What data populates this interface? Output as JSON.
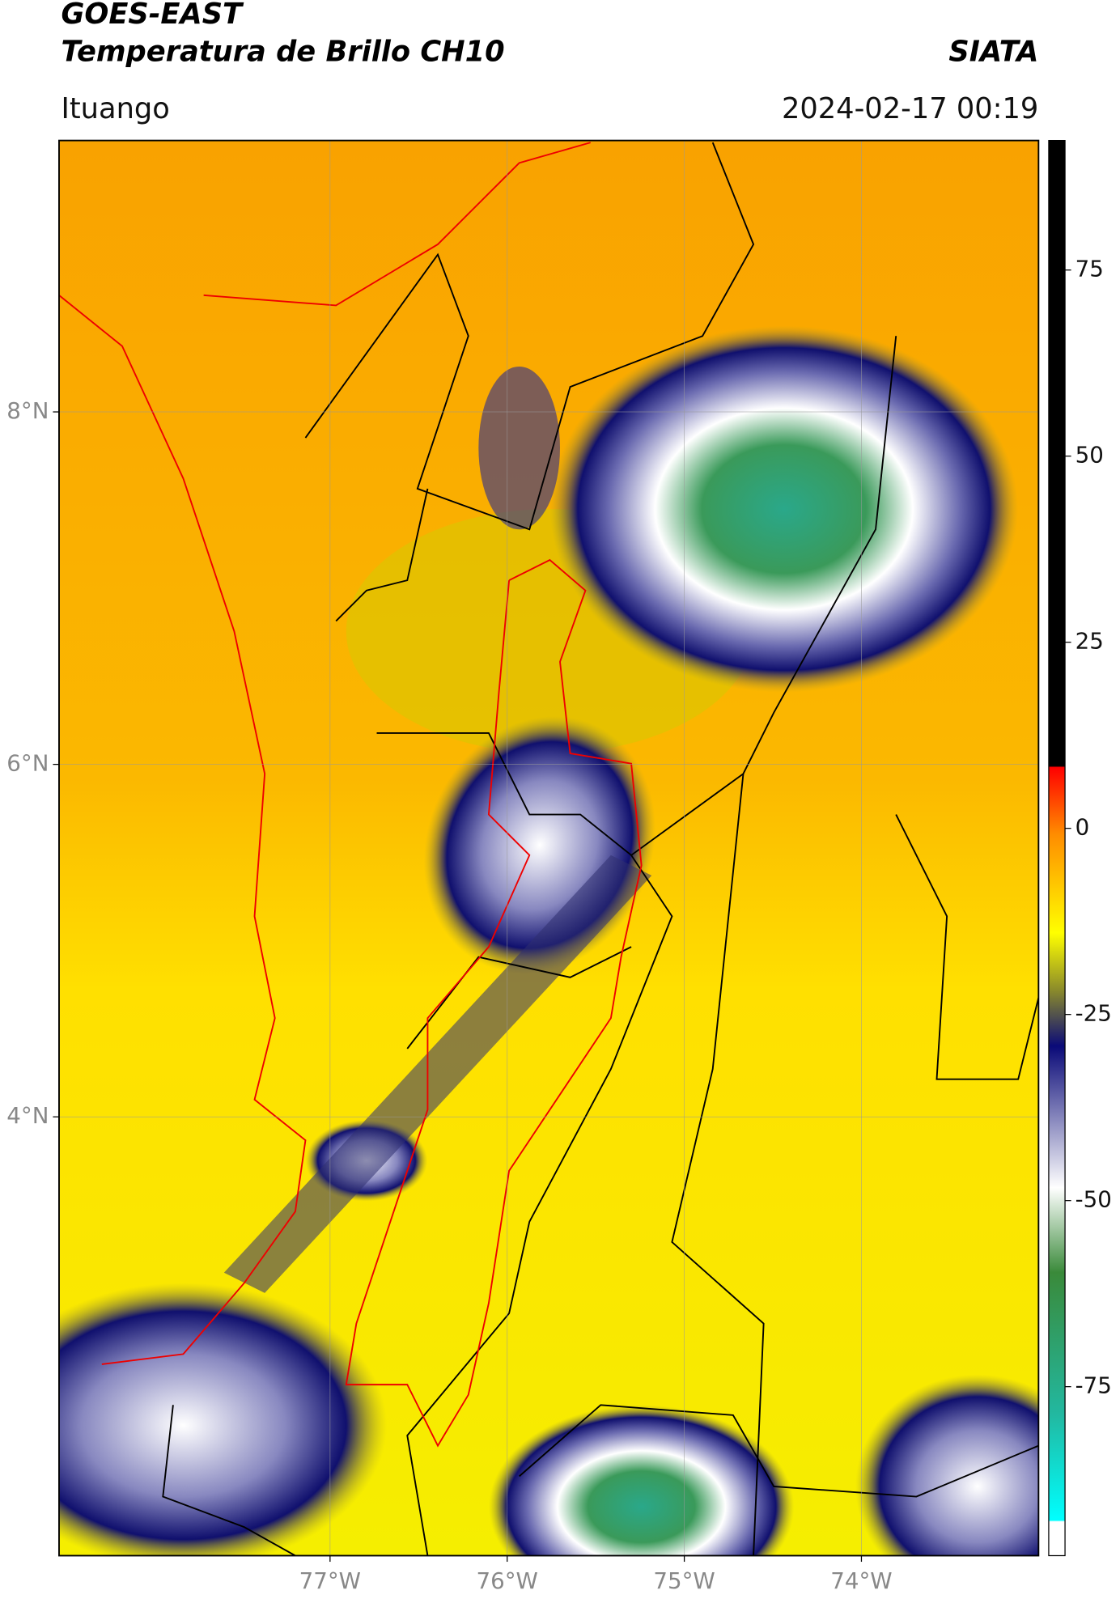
{
  "header": {
    "title": "GOES-EAST",
    "subtitle": "Temperatura de Brillo CH10",
    "source": "SIATA",
    "location": "Ituango",
    "timestamp": "2024-02-17 00:19"
  },
  "map": {
    "lonlim": [
      -78.53,
      -73.0
    ],
    "latlim": [
      1.51,
      9.54
    ],
    "lonticks": [
      {
        "value": -77,
        "label": "77°W"
      },
      {
        "value": -76,
        "label": "76°W"
      },
      {
        "value": -75,
        "label": "75°W"
      },
      {
        "value": -74,
        "label": "74°W"
      }
    ],
    "latticks": [
      {
        "value": 8,
        "label": "8°N"
      },
      {
        "value": 6,
        "label": "6°N"
      },
      {
        "value": 4,
        "label": "4°N"
      }
    ]
  },
  "colorbar": {
    "lim": [
      -97.7,
      92.4
    ],
    "ticks": [
      75,
      50,
      25,
      0,
      -25,
      -50,
      -75
    ]
  }
}
